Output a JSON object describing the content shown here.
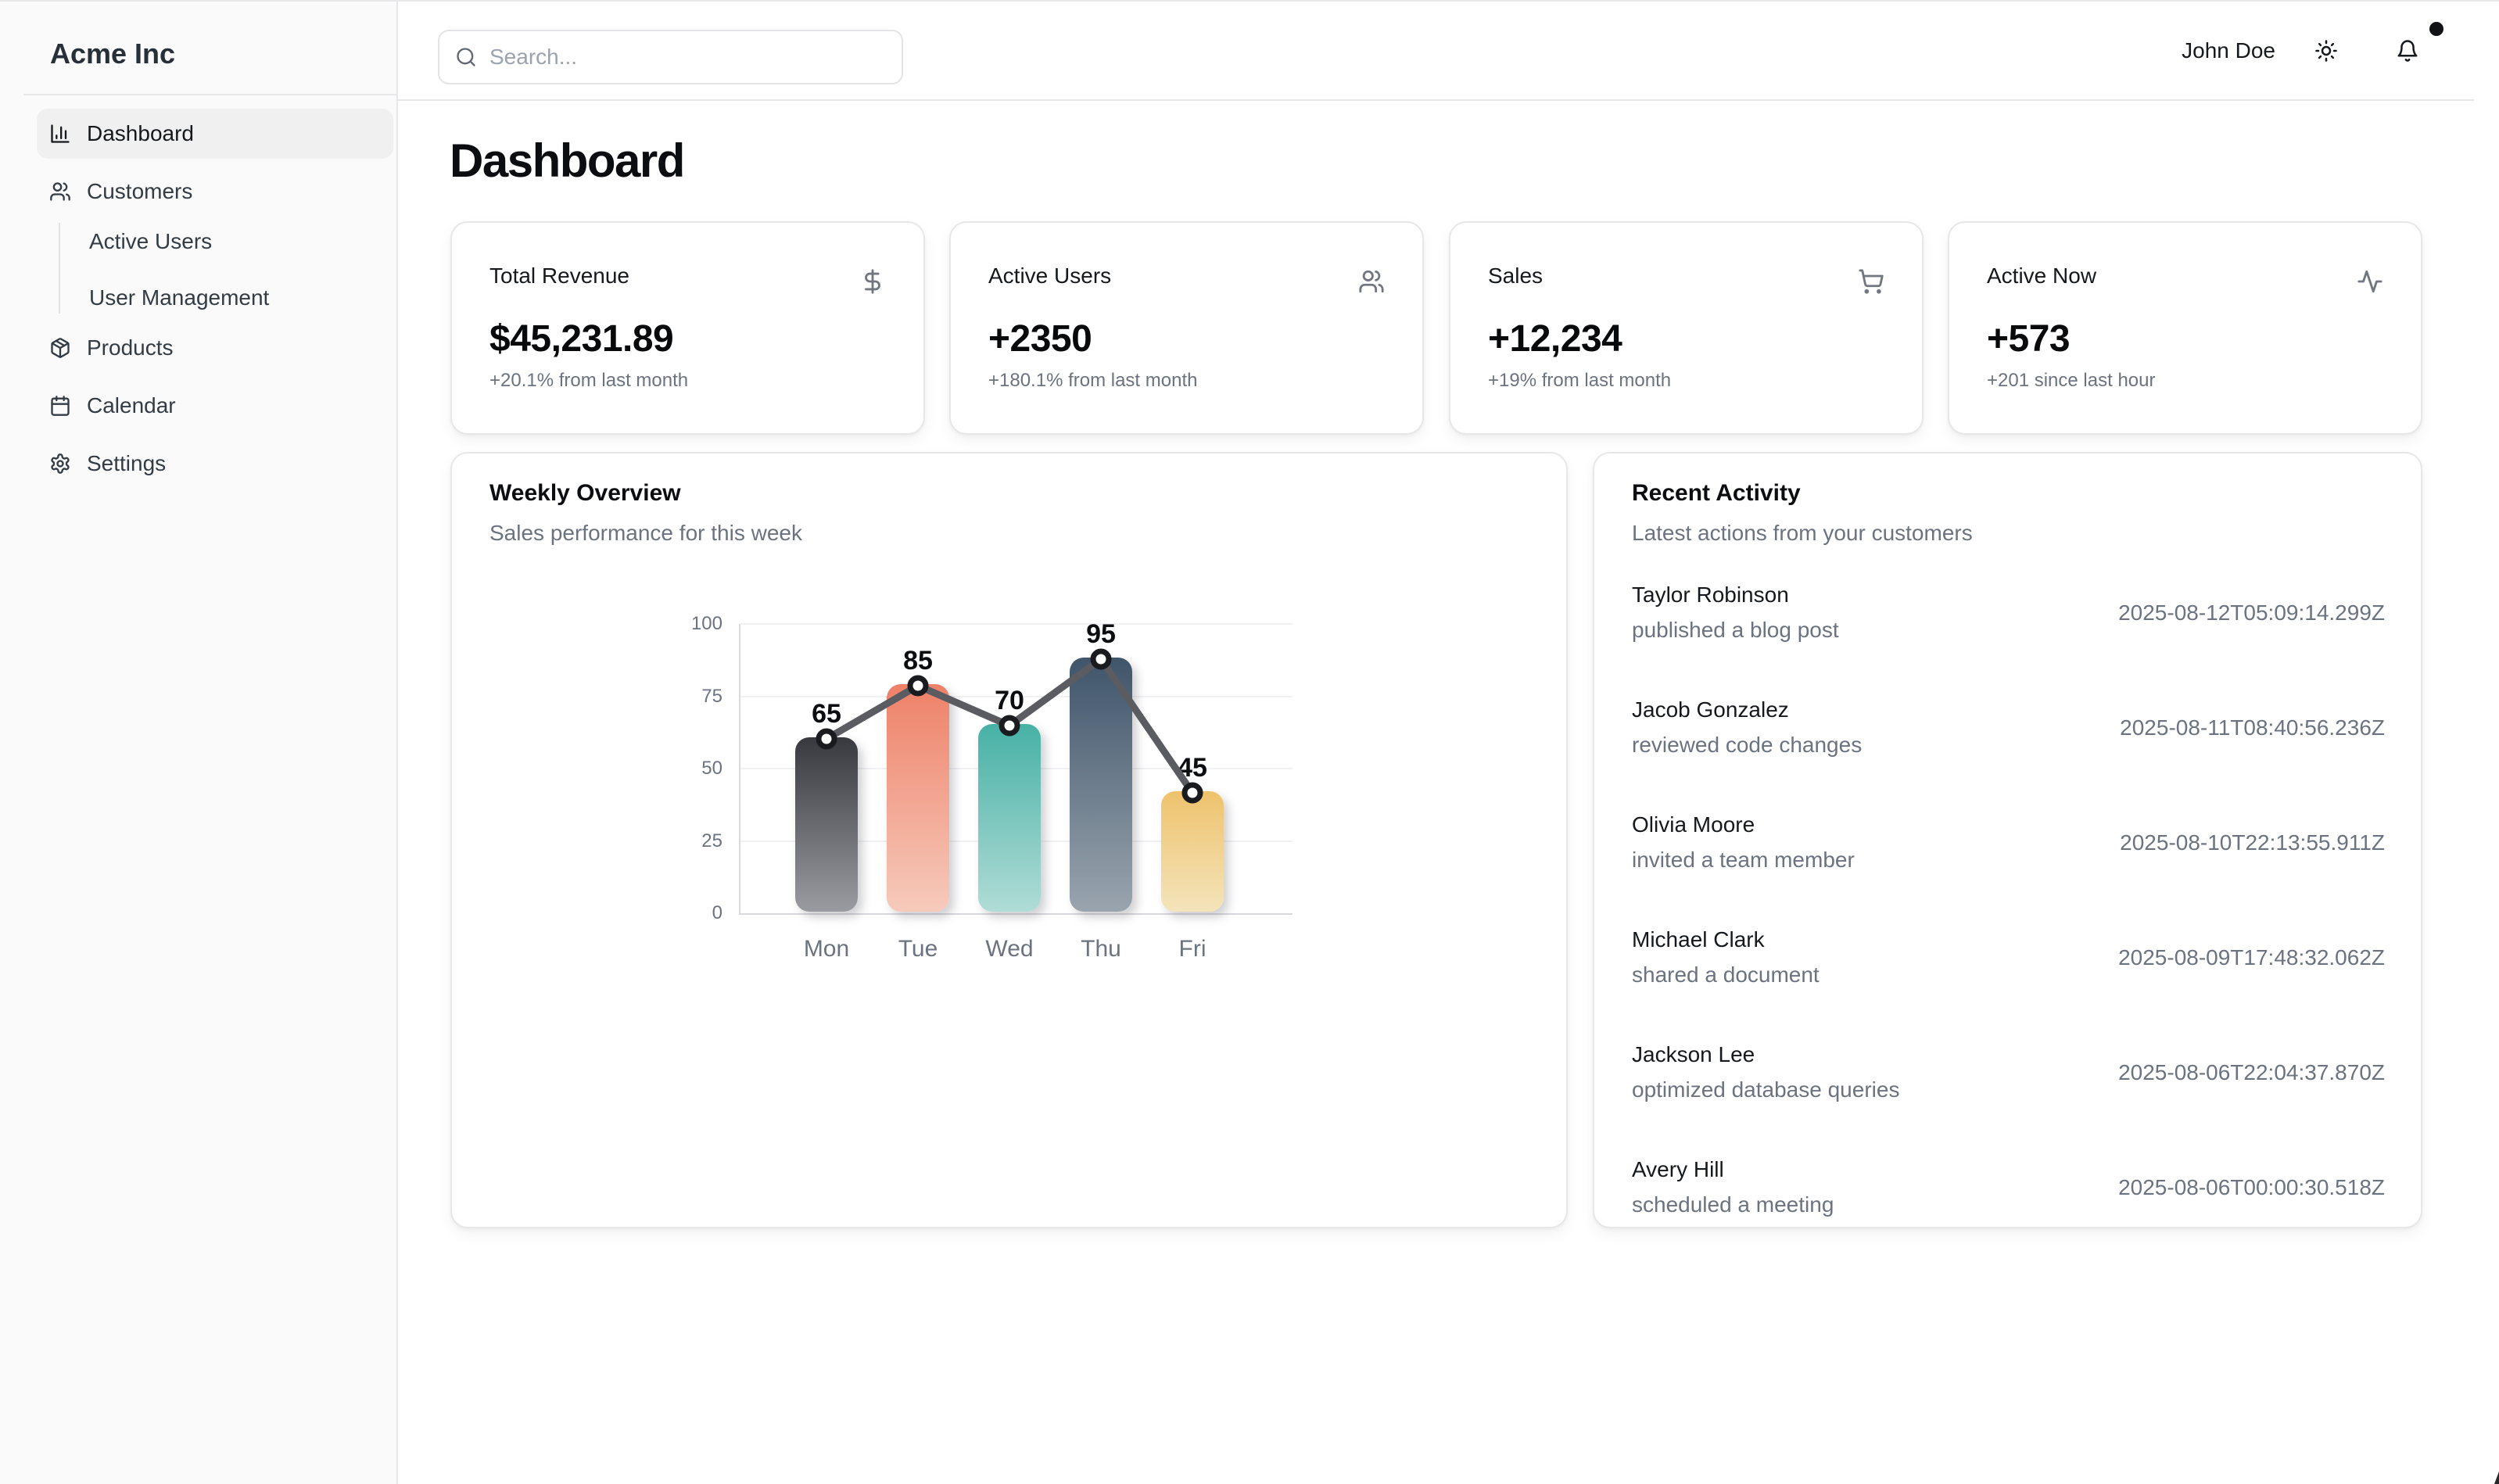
{
  "app": {
    "brand": "Acme Inc"
  },
  "sidebar": {
    "items": [
      {
        "label": "Dashboard",
        "icon": "bar-chart-icon",
        "active": true
      },
      {
        "label": "Customers",
        "icon": "users-icon",
        "active": false,
        "children": [
          {
            "label": "Active Users"
          },
          {
            "label": "User Management"
          }
        ]
      },
      {
        "label": "Products",
        "icon": "package-icon",
        "active": false
      },
      {
        "label": "Calendar",
        "icon": "calendar-icon",
        "active": false
      },
      {
        "label": "Settings",
        "icon": "settings-icon",
        "active": false
      }
    ]
  },
  "header": {
    "search_placeholder": "Search...",
    "search_value": "",
    "user": "John Doe",
    "has_notification_dot": true
  },
  "page": {
    "title": "Dashboard"
  },
  "stats": [
    {
      "title": "Total Revenue",
      "icon": "dollar-icon",
      "value": "$45,231.89",
      "sub": "+20.1% from last month"
    },
    {
      "title": "Active Users",
      "icon": "users-icon",
      "value": "+2350",
      "sub": "+180.1% from last month"
    },
    {
      "title": "Sales",
      "icon": "cart-icon",
      "value": "+12,234",
      "sub": "+19% from last month"
    },
    {
      "title": "Active Now",
      "icon": "activity-icon",
      "value": "+573",
      "sub": "+201 since last hour"
    }
  ],
  "chart_card": {
    "title": "Weekly Overview",
    "subtitle": "Sales performance for this week"
  },
  "chart_data": {
    "type": "bar",
    "categories": [
      "Mon",
      "Tue",
      "Wed",
      "Thu",
      "Fri"
    ],
    "values": [
      65,
      85,
      70,
      95,
      45
    ],
    "title": "Weekly Overview",
    "xlabel": "",
    "ylabel": "",
    "ylim": [
      0,
      100
    ],
    "yticks": [
      0,
      25,
      50,
      75,
      100
    ],
    "grid": true,
    "legend": false,
    "overlay_line": true,
    "bar_gradients": [
      [
        "#38383f",
        "#9a9aa1"
      ],
      [
        "#ee8168",
        "#f6cabb"
      ],
      [
        "#47b1a6",
        "#b0dcd6"
      ],
      [
        "#40556a",
        "#99a4ae"
      ],
      [
        "#eec26c",
        "#f4e4bb"
      ]
    ],
    "line_color": "#5b5b62",
    "value_label_color": "#0b0d10"
  },
  "activity_card": {
    "title": "Recent Activity",
    "subtitle": "Latest actions from your customers",
    "items": [
      {
        "who": "Taylor Robinson",
        "action": "published a blog post",
        "when": "2025-08-12T05:09:14.299Z"
      },
      {
        "who": "Jacob Gonzalez",
        "action": "reviewed code changes",
        "when": "2025-08-11T08:40:56.236Z"
      },
      {
        "who": "Olivia Moore",
        "action": "invited a team member",
        "when": "2025-08-10T22:13:55.911Z"
      },
      {
        "who": "Michael Clark",
        "action": "shared a document",
        "when": "2025-08-09T17:48:32.062Z"
      },
      {
        "who": "Jackson Lee",
        "action": "optimized database queries",
        "when": "2025-08-06T22:04:37.870Z"
      },
      {
        "who": "Avery Hill",
        "action": "scheduled a meeting",
        "when": "2025-08-06T00:00:30.518Z"
      }
    ]
  },
  "colors": {
    "accent_bg": "#fafafa",
    "border": "#e7e7ea",
    "muted": "#6b7280"
  }
}
